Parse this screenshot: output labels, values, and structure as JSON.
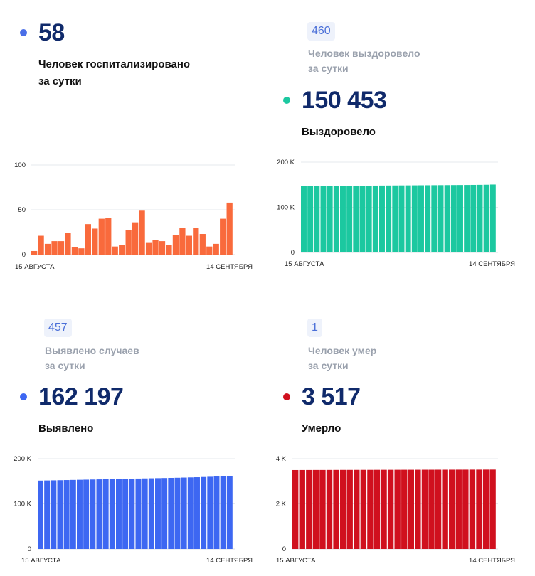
{
  "panels": [
    {
      "id": "hospitalized",
      "big_value": "58",
      "label_line1": "Человек госпитализировано",
      "label_line2": "за сутки",
      "color": "#f96a3c",
      "dot_color": "#4a6fe8"
    },
    {
      "id": "recovered",
      "delta": "460",
      "sub_line1": "Человек выздоровело",
      "sub_line2": "за сутки",
      "big_value": "150 453",
      "label_line1": "Выздоровело",
      "color": "#1cc8a0",
      "dot_color": "#1cc8a0"
    },
    {
      "id": "detected",
      "delta": "457",
      "sub_line1": "Выявлено случаев",
      "sub_line2": "за сутки",
      "big_value": "162 197",
      "label_line1": "Выявлено",
      "color": "#3d67f2",
      "dot_color": "#3d67f2"
    },
    {
      "id": "died",
      "delta": "1",
      "sub_line1": "Человек умер",
      "sub_line2": "за сутки",
      "big_value": "3 517",
      "label_line1": "Умерло",
      "color": "#d0101e",
      "dot_color": "#d0101e"
    }
  ],
  "chart_data": [
    {
      "type": "bar",
      "series_color": "#f96a3c",
      "x_start_label": "15 АВГУСТА",
      "x_end_label": "14 СЕНТЯБРЯ",
      "yticks": [
        "0",
        "50",
        "100"
      ],
      "ylim": [
        0,
        100
      ],
      "values": [
        4,
        21,
        12,
        15,
        15,
        24,
        8,
        7,
        34,
        29,
        40,
        41,
        9,
        11,
        27,
        36,
        49,
        13,
        16,
        15,
        11,
        22,
        30,
        21,
        30,
        23,
        9,
        12,
        40,
        58
      ]
    },
    {
      "type": "bar",
      "series_color": "#1cc8a0",
      "x_start_label": "15 АВГУСТА",
      "x_end_label": "14 СЕНТЯБРЯ",
      "yticks": [
        "0",
        "100 K",
        "200 K"
      ],
      "ylim": [
        0,
        200000
      ],
      "values": [
        147000,
        147100,
        147200,
        147300,
        147400,
        147500,
        147600,
        147700,
        147800,
        147900,
        148000,
        148100,
        148200,
        148300,
        148400,
        148500,
        148600,
        148700,
        148800,
        148900,
        149000,
        149100,
        149200,
        149300,
        149400,
        149500,
        149650,
        149800,
        149993,
        150453
      ]
    },
    {
      "type": "bar",
      "series_color": "#3d67f2",
      "x_start_label": "15 АВГУСТА",
      "x_end_label": "14 СЕНТЯБРЯ",
      "yticks": [
        "0",
        "100 K",
        "200 K"
      ],
      "ylim": [
        0,
        200000
      ],
      "values": [
        151500,
        151800,
        152100,
        152400,
        152700,
        153000,
        153300,
        153600,
        153900,
        154200,
        154500,
        154800,
        155100,
        155400,
        155700,
        156000,
        156300,
        156600,
        156900,
        157200,
        157500,
        157800,
        158200,
        158600,
        159000,
        159500,
        160000,
        160600,
        161740,
        162197
      ]
    },
    {
      "type": "bar",
      "series_color": "#d0101e",
      "x_start_label": "15 АВГУСТА",
      "x_end_label": "14 СЕНТЯБРЯ",
      "yticks": [
        "0",
        "2 K",
        "4 K"
      ],
      "ylim": [
        0,
        4000
      ],
      "values": [
        3497,
        3498,
        3499,
        3500,
        3500,
        3501,
        3502,
        3503,
        3503,
        3504,
        3505,
        3505,
        3506,
        3507,
        3507,
        3508,
        3509,
        3509,
        3510,
        3511,
        3511,
        3512,
        3512,
        3513,
        3514,
        3514,
        3515,
        3515,
        3516,
        3517
      ]
    }
  ]
}
